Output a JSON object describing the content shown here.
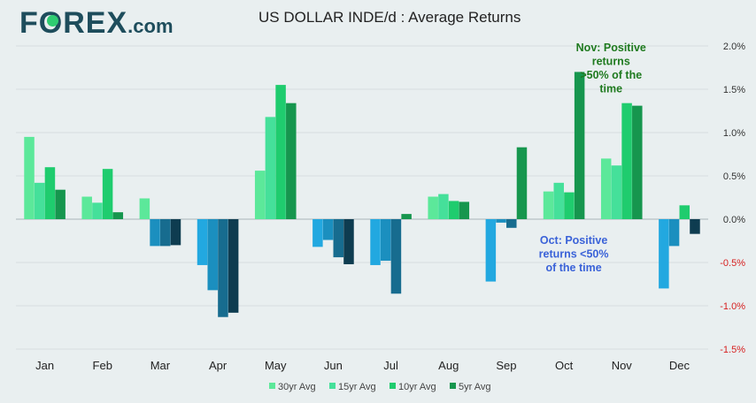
{
  "brand": {
    "name_left": "F",
    "name_o": "O",
    "name_right": "REX",
    "suffix": ".com"
  },
  "header": {
    "title": "US DOLLAR INDE/d : Average Returns"
  },
  "chart_data": {
    "type": "bar",
    "title": "US DOLLAR INDE/d : Average Returns",
    "xlabel": "",
    "ylabel": "",
    "ylim": [
      -1.5,
      2.0
    ],
    "y_ticks": [
      2.0,
      1.5,
      1.0,
      0.5,
      0.0,
      -0.5,
      -1.0,
      -1.5
    ],
    "y_tick_labels": [
      "2.0%",
      "1.5%",
      "1.0%",
      "0.5%",
      "0.0%",
      "-0.5%",
      "-1.0%",
      "-1.5%"
    ],
    "grid": true,
    "categories": [
      "Jan",
      "Feb",
      "Mar",
      "Apr",
      "May",
      "Jun",
      "Jul",
      "Aug",
      "Sep",
      "Oct",
      "Nov",
      "Dec"
    ],
    "series": [
      {
        "name": "30yr Avg",
        "values": [
          0.95,
          0.26,
          0.24,
          -0.53,
          0.56,
          -0.32,
          -0.53,
          0.26,
          -0.72,
          0.32,
          0.7,
          -0.8
        ],
        "pos_color": "#5ce89a",
        "neg_color": "#22a8e0"
      },
      {
        "name": "15yr Avg",
        "values": [
          0.42,
          0.19,
          -0.31,
          -0.82,
          1.18,
          -0.24,
          -0.48,
          0.29,
          -0.04,
          0.42,
          0.62,
          -0.31
        ],
        "pos_color": "#45e09a",
        "neg_color": "#1b8fbf"
      },
      {
        "name": "10yr Avg",
        "values": [
          0.6,
          0.58,
          -0.31,
          -1.13,
          1.55,
          -0.44,
          -0.86,
          0.21,
          -0.1,
          0.31,
          1.34,
          0.16
        ],
        "pos_color": "#1fcc6e",
        "neg_color": "#176c8f"
      },
      {
        "name": "5yr Avg",
        "values": [
          0.34,
          0.08,
          -0.3,
          -1.08,
          1.34,
          -0.52,
          0.06,
          0.2,
          0.83,
          1.7,
          1.31,
          -0.17
        ],
        "pos_color": "#16964e",
        "neg_color": "#0e3c50"
      }
    ],
    "legend_position": "bottom-center",
    "annotations": [
      {
        "line1": "Nov: Positive",
        "line2": "returns",
        "line3": ">50% of the",
        "line4": "time",
        "color": "#1f7a1f",
        "anchor_category": "Nov"
      },
      {
        "line1": "Oct: Positive",
        "line2": "returns <50%",
        "line3": "of the time",
        "color": "#3a62d8",
        "anchor_category": "Oct"
      }
    ]
  }
}
